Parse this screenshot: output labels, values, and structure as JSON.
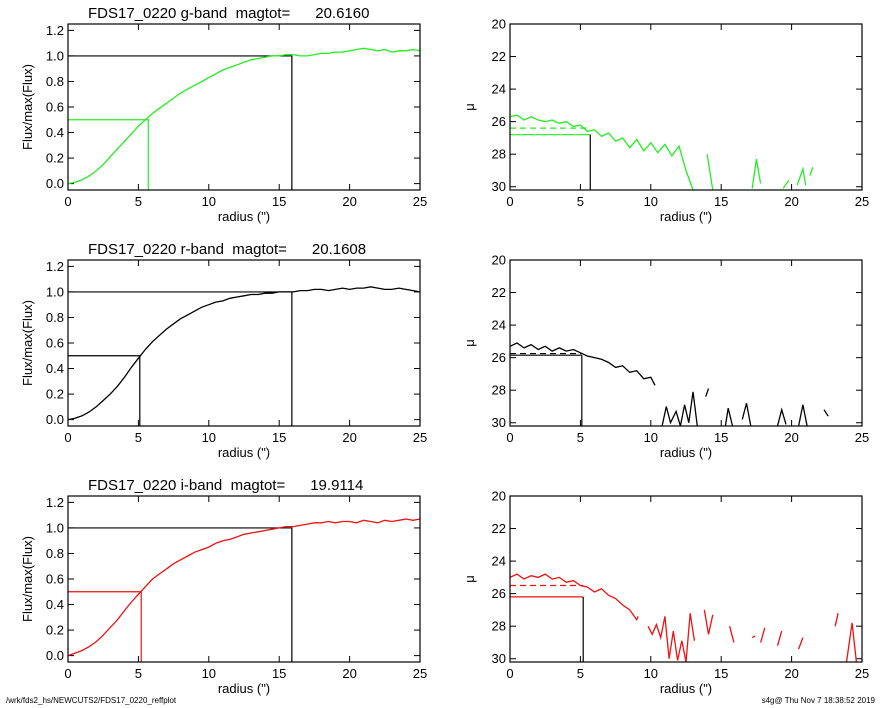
{
  "footer": {
    "path": "/wrk/fds2_hs/NEWCUTS2/FDS17_0220_reffplot",
    "stamp": "s4g@  Thu Nov  7 18:38:52 2019"
  },
  "chart_data": [
    {
      "type": "line",
      "title": "FDS17_0220 g-band  magtot=      20.6160",
      "xlabel": "radius (\")",
      "ylabel": "Flux/max(Flux)",
      "xlim": [
        0,
        25
      ],
      "ylim": [
        -0.05,
        1.25
      ],
      "xticks": [
        0,
        5,
        10,
        15,
        20,
        25
      ],
      "yticks": [
        0.0,
        0.2,
        0.4,
        0.6,
        0.8,
        1.0,
        1.2
      ],
      "ytick_labels": [
        "0.0",
        "0.2",
        "0.4",
        "0.6",
        "0.8",
        "1.0",
        "1.2"
      ],
      "color": "#22ee22",
      "x": [
        0,
        0.5,
        1,
        1.5,
        2,
        2.5,
        3,
        3.5,
        4,
        4.5,
        5,
        5.5,
        6,
        6.5,
        7,
        7.5,
        8,
        8.5,
        9,
        9.5,
        10,
        10.5,
        11,
        11.5,
        12,
        12.5,
        13,
        13.5,
        14,
        14.5,
        15,
        15.5,
        16,
        16.5,
        17,
        17.5,
        18,
        18.5,
        19,
        19.5,
        20,
        20.5,
        21,
        21.5,
        22,
        22.5,
        23,
        23.5,
        24,
        24.5,
        25
      ],
      "y": [
        0.0,
        0.01,
        0.03,
        0.06,
        0.1,
        0.15,
        0.21,
        0.27,
        0.33,
        0.39,
        0.45,
        0.5,
        0.55,
        0.59,
        0.63,
        0.67,
        0.71,
        0.74,
        0.77,
        0.8,
        0.83,
        0.86,
        0.89,
        0.91,
        0.93,
        0.95,
        0.97,
        0.98,
        0.99,
        1.0,
        1.0,
        1.01,
        1.01,
        1.0,
        1.0,
        1.01,
        1.02,
        1.02,
        1.03,
        1.03,
        1.04,
        1.05,
        1.06,
        1.05,
        1.04,
        1.05,
        1.03,
        1.04,
        1.04,
        1.05,
        1.04
      ],
      "half_radius": 5.7,
      "total_radius": 15.9
    },
    {
      "type": "line",
      "title": "",
      "xlabel": "radius (\")",
      "ylabel": "μ",
      "xlim": [
        0,
        25
      ],
      "ylim": [
        30.2,
        20
      ],
      "xticks": [
        0,
        5,
        10,
        15,
        20,
        25
      ],
      "yticks": [
        20,
        22,
        24,
        26,
        28,
        30
      ],
      "color": "#22ee22",
      "segments": [
        [
          [
            0,
            25.7
          ],
          [
            0.5,
            25.6
          ],
          [
            1,
            25.9
          ],
          [
            1.5,
            25.7
          ],
          [
            2,
            25.9
          ],
          [
            2.5,
            26.0
          ],
          [
            3,
            25.9
          ],
          [
            3.5,
            26.1
          ],
          [
            4,
            26.0
          ],
          [
            4.5,
            26.3
          ],
          [
            5,
            26.2
          ],
          [
            5.5,
            26.6
          ],
          [
            6,
            26.5
          ],
          [
            6.5,
            26.9
          ],
          [
            7,
            26.7
          ],
          [
            7.5,
            27.2
          ],
          [
            8,
            27.0
          ],
          [
            8.5,
            27.6
          ],
          [
            9,
            27.1
          ],
          [
            9.5,
            27.8
          ],
          [
            10,
            27.3
          ],
          [
            10.5,
            27.9
          ],
          [
            11,
            27.4
          ],
          [
            11.5,
            28.1
          ],
          [
            12,
            27.5
          ],
          [
            12.5,
            29.0
          ],
          [
            13,
            30.2
          ]
        ],
        [
          [
            14.0,
            28.0
          ],
          [
            14.4,
            30.2
          ]
        ],
        [
          [
            17.2,
            30.1
          ],
          [
            17.5,
            28.3
          ],
          [
            17.8,
            29.8
          ]
        ],
        [
          [
            19.4,
            30.1
          ],
          [
            19.8,
            29.6
          ]
        ],
        [
          [
            20.4,
            29.9
          ],
          [
            20.8,
            28.9
          ],
          [
            21.0,
            29.9
          ]
        ],
        [
          [
            21.3,
            29.3
          ],
          [
            21.5,
            28.8
          ]
        ]
      ],
      "dashed_level": 26.4,
      "dashed_range": [
        0,
        5.7
      ],
      "solid_level": 26.8,
      "vline_radius": 5.7
    },
    {
      "type": "line",
      "title": "FDS17_0220 r-band  magtot=      20.1608",
      "xlabel": "radius (\")",
      "ylabel": "Flux/max(Flux)",
      "xlim": [
        0,
        25
      ],
      "ylim": [
        -0.05,
        1.25
      ],
      "xticks": [
        0,
        5,
        10,
        15,
        20,
        25
      ],
      "yticks": [
        0.0,
        0.2,
        0.4,
        0.6,
        0.8,
        1.0,
        1.2
      ],
      "ytick_labels": [
        "0.0",
        "0.2",
        "0.4",
        "0.6",
        "0.8",
        "1.0",
        "1.2"
      ],
      "color": "#000000",
      "x": [
        0,
        0.5,
        1,
        1.5,
        2,
        2.5,
        3,
        3.5,
        4,
        4.5,
        5,
        5.5,
        6,
        6.5,
        7,
        7.5,
        8,
        8.5,
        9,
        9.5,
        10,
        10.5,
        11,
        11.5,
        12,
        12.5,
        13,
        13.5,
        14,
        14.5,
        15,
        15.5,
        16,
        16.5,
        17,
        17.5,
        18,
        18.5,
        19,
        19.5,
        20,
        20.5,
        21,
        21.5,
        22,
        22.5,
        23,
        23.5,
        24,
        24.5,
        25
      ],
      "y": [
        0.0,
        0.01,
        0.03,
        0.06,
        0.1,
        0.15,
        0.2,
        0.26,
        0.33,
        0.41,
        0.48,
        0.55,
        0.61,
        0.66,
        0.71,
        0.75,
        0.79,
        0.82,
        0.85,
        0.88,
        0.9,
        0.92,
        0.93,
        0.95,
        0.96,
        0.97,
        0.98,
        0.98,
        0.99,
        0.99,
        1.0,
        1.0,
        1.0,
        1.01,
        1.01,
        1.02,
        1.02,
        1.01,
        1.02,
        1.03,
        1.02,
        1.03,
        1.03,
        1.04,
        1.03,
        1.02,
        1.02,
        1.03,
        1.02,
        1.01,
        1.0
      ],
      "half_radius": 5.1,
      "total_radius": 15.9
    },
    {
      "type": "line",
      "title": "",
      "xlabel": "radius (\")",
      "ylabel": "μ",
      "xlim": [
        0,
        25
      ],
      "ylim": [
        30.2,
        20
      ],
      "xticks": [
        0,
        5,
        10,
        15,
        20,
        25
      ],
      "yticks": [
        20,
        22,
        24,
        26,
        28,
        30
      ],
      "color": "#000000",
      "segments": [
        [
          [
            0,
            25.3
          ],
          [
            0.5,
            25.1
          ],
          [
            1,
            25.4
          ],
          [
            1.5,
            25.2
          ],
          [
            2,
            25.5
          ],
          [
            2.5,
            25.3
          ],
          [
            3,
            25.6
          ],
          [
            3.5,
            25.4
          ],
          [
            4,
            25.6
          ],
          [
            4.5,
            25.5
          ],
          [
            5,
            25.7
          ],
          [
            5.5,
            25.9
          ],
          [
            6,
            26.0
          ],
          [
            6.5,
            26.1
          ],
          [
            7,
            26.3
          ],
          [
            7.5,
            26.6
          ],
          [
            8,
            26.5
          ],
          [
            8.5,
            26.9
          ],
          [
            9,
            26.8
          ],
          [
            9.5,
            27.3
          ],
          [
            10,
            27.2
          ],
          [
            10.3,
            27.7
          ]
        ],
        [
          [
            10.8,
            30.2
          ],
          [
            11.1,
            29.0
          ],
          [
            11.4,
            30.0
          ],
          [
            11.8,
            29.3
          ],
          [
            12.1,
            30.2
          ],
          [
            12.4,
            28.9
          ],
          [
            12.7,
            30.0
          ],
          [
            13.0,
            28.1
          ],
          [
            13.3,
            30.2
          ]
        ],
        [
          [
            13.9,
            28.4
          ],
          [
            14.1,
            27.9
          ]
        ],
        [
          [
            15.3,
            30.2
          ],
          [
            15.5,
            29.1
          ],
          [
            15.8,
            30.2
          ]
        ],
        [
          [
            16.5,
            29.8
          ],
          [
            16.8,
            28.8
          ],
          [
            17.1,
            30.2
          ]
        ],
        [
          [
            19.0,
            30.2
          ],
          [
            19.3,
            29.2
          ],
          [
            19.6,
            30.1
          ]
        ],
        [
          [
            20.5,
            30.2
          ],
          [
            20.8,
            28.9
          ],
          [
            21.1,
            30.2
          ]
        ],
        [
          [
            22.3,
            29.2
          ],
          [
            22.6,
            29.6
          ]
        ]
      ],
      "dashed_level": 25.75,
      "dashed_range": [
        0,
        5.1
      ],
      "solid_level": 25.85,
      "vline_radius": 5.1
    },
    {
      "type": "line",
      "title": "FDS17_0220 i-band  magtot=      19.9114",
      "xlabel": "radius (\")",
      "ylabel": "Flux/max(Flux)",
      "xlim": [
        0,
        25
      ],
      "ylim": [
        -0.05,
        1.25
      ],
      "xticks": [
        0,
        5,
        10,
        15,
        20,
        25
      ],
      "yticks": [
        0.0,
        0.2,
        0.4,
        0.6,
        0.8,
        1.0,
        1.2
      ],
      "ytick_labels": [
        "0.0",
        "0.2",
        "0.4",
        "0.6",
        "0.8",
        "1.0",
        "1.2"
      ],
      "color": "#ee1111",
      "x": [
        0,
        0.5,
        1,
        1.5,
        2,
        2.5,
        3,
        3.5,
        4,
        4.5,
        5,
        5.5,
        6,
        6.5,
        7,
        7.5,
        8,
        8.5,
        9,
        9.5,
        10,
        10.5,
        11,
        11.5,
        12,
        12.5,
        13,
        13.5,
        14,
        14.5,
        15,
        15.5,
        16,
        16.5,
        17,
        17.5,
        18,
        18.5,
        19,
        19.5,
        20,
        20.5,
        21,
        21.5,
        22,
        22.5,
        23,
        23.5,
        24,
        24.5,
        25
      ],
      "y": [
        0.0,
        0.02,
        0.04,
        0.07,
        0.11,
        0.16,
        0.22,
        0.28,
        0.35,
        0.42,
        0.48,
        0.54,
        0.6,
        0.64,
        0.68,
        0.72,
        0.75,
        0.78,
        0.81,
        0.83,
        0.85,
        0.88,
        0.9,
        0.91,
        0.93,
        0.95,
        0.96,
        0.97,
        0.98,
        0.99,
        1.0,
        1.01,
        1.01,
        1.02,
        1.03,
        1.04,
        1.04,
        1.05,
        1.04,
        1.05,
        1.05,
        1.04,
        1.06,
        1.05,
        1.04,
        1.06,
        1.05,
        1.06,
        1.07,
        1.06,
        1.07
      ],
      "half_radius": 5.2,
      "total_radius": 15.9
    },
    {
      "type": "line",
      "title": "",
      "xlabel": "radius (\")",
      "ylabel": "μ",
      "xlim": [
        0,
        25
      ],
      "ylim": [
        30.2,
        20
      ],
      "xticks": [
        0,
        5,
        10,
        15,
        20,
        25
      ],
      "yticks": [
        20,
        22,
        24,
        26,
        28,
        30
      ],
      "color": "#ee1111",
      "segments": [
        [
          [
            0,
            25.0
          ],
          [
            0.5,
            24.8
          ],
          [
            1,
            25.1
          ],
          [
            1.5,
            24.9
          ],
          [
            2,
            25.0
          ],
          [
            2.5,
            24.8
          ],
          [
            3,
            25.1
          ],
          [
            3.5,
            25.0
          ],
          [
            4,
            25.3
          ],
          [
            4.5,
            25.2
          ],
          [
            5,
            25.5
          ],
          [
            5.5,
            25.6
          ],
          [
            6,
            25.9
          ],
          [
            6.5,
            25.7
          ],
          [
            7,
            26.1
          ],
          [
            7.5,
            26.3
          ],
          [
            8,
            26.7
          ],
          [
            8.5,
            27.0
          ],
          [
            9,
            27.6
          ],
          [
            9.1,
            27.4
          ]
        ],
        [
          [
            9.8,
            28.0
          ],
          [
            10.1,
            28.5
          ],
          [
            10.4,
            27.9
          ],
          [
            10.7,
            28.7
          ],
          [
            11.0,
            27.4
          ],
          [
            11.3,
            30.0
          ],
          [
            11.6,
            28.3
          ],
          [
            11.9,
            30.1
          ],
          [
            12.2,
            28.9
          ],
          [
            12.5,
            30.2
          ],
          [
            12.8,
            27.2
          ],
          [
            13.1,
            28.9
          ]
        ],
        [
          [
            13.8,
            27.0
          ],
          [
            14.1,
            28.5
          ],
          [
            14.4,
            27.3
          ]
        ],
        [
          [
            15.6,
            28.0
          ],
          [
            15.9,
            29.0
          ]
        ],
        [
          [
            17.2,
            28.7
          ],
          [
            17.4,
            28.6
          ]
        ],
        [
          [
            17.8,
            29.0
          ],
          [
            18.1,
            28.1
          ]
        ],
        [
          [
            19.0,
            29.2
          ],
          [
            19.3,
            28.3
          ]
        ],
        [
          [
            20.5,
            29.4
          ],
          [
            20.8,
            28.7
          ]
        ],
        [
          [
            23.1,
            28.0
          ],
          [
            23.3,
            27.2
          ]
        ],
        [
          [
            23.9,
            30.2
          ],
          [
            24.3,
            27.8
          ],
          [
            24.6,
            30.2
          ]
        ]
      ],
      "dashed_level": 25.5,
      "dashed_range": [
        0,
        5.2
      ],
      "solid_level": 26.2,
      "vline_radius": 5.2
    }
  ]
}
